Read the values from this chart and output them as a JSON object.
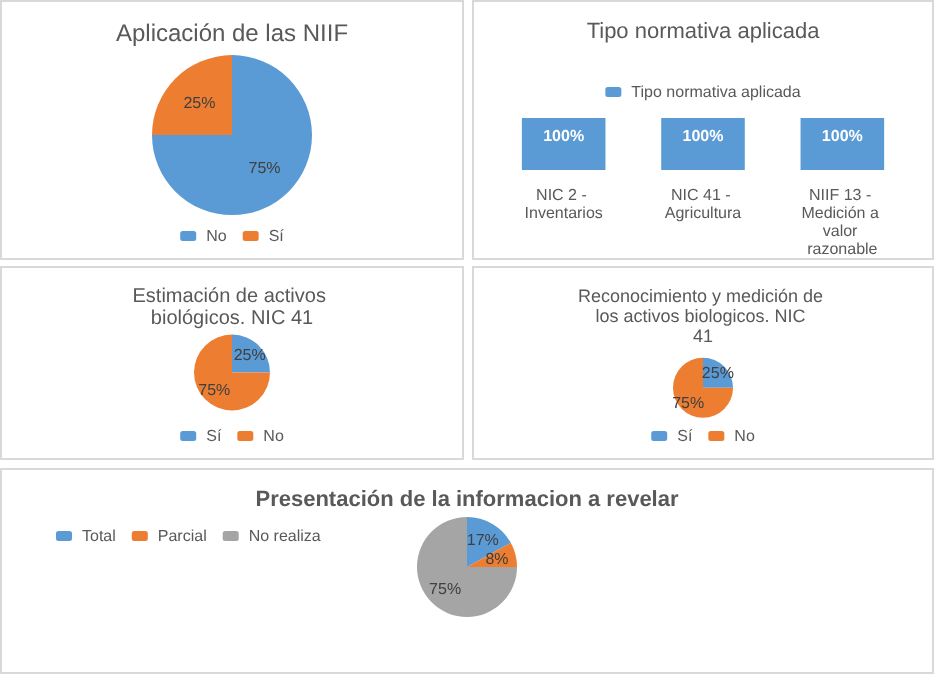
{
  "chart_data": [
    {
      "type": "pie",
      "title": "Aplicación de las NIIF",
      "categories": [
        "No",
        "Sí"
      ],
      "values": [
        75,
        25
      ],
      "colors": [
        "#5b9bd5",
        "#ed7d31"
      ],
      "value_labels": [
        "75%",
        "25%"
      ],
      "legend": "bottom"
    },
    {
      "type": "bar",
      "title": "Tipo normativa aplicada",
      "categories": [
        "NIC 2 - Inventarios",
        "NIC 41 - Agricultura",
        "NIIF 13 - Medición a valor razonable"
      ],
      "series": [
        {
          "name": "Tipo normativa aplicada",
          "color": "#5b9bd5",
          "values": [
            100,
            100,
            100
          ],
          "value_labels": [
            "100%",
            "100%",
            "100%"
          ]
        }
      ],
      "tick_labels": "x",
      "legend": "top"
    },
    {
      "type": "pie",
      "title": "Estimación de activos biológicos. NIC 41",
      "categories": [
        "Sí",
        "No"
      ],
      "values": [
        25,
        75
      ],
      "colors": [
        "#5b9bd5",
        "#ed7d31"
      ],
      "value_labels": [
        "25%",
        "75%"
      ],
      "legend": "bottom"
    },
    {
      "type": "pie",
      "title": "Reconocimiento y medición de los activos biologicos. NIC 41",
      "categories": [
        "Sí",
        "No"
      ],
      "values": [
        25,
        75
      ],
      "colors": [
        "#5b9bd5",
        "#ed7d31"
      ],
      "value_labels": [
        "25%",
        "75%"
      ],
      "legend": "bottom"
    },
    {
      "type": "pie",
      "title": "Presentación de la informacion a revelar",
      "categories": [
        "Total",
        "Parcial",
        "No realiza"
      ],
      "values": [
        17,
        8,
        75
      ],
      "colors": [
        "#5b9bd5",
        "#ed7d31",
        "#a5a5a5"
      ],
      "value_labels": [
        "17%",
        "8%",
        "75%"
      ],
      "legend": "top left"
    }
  ]
}
